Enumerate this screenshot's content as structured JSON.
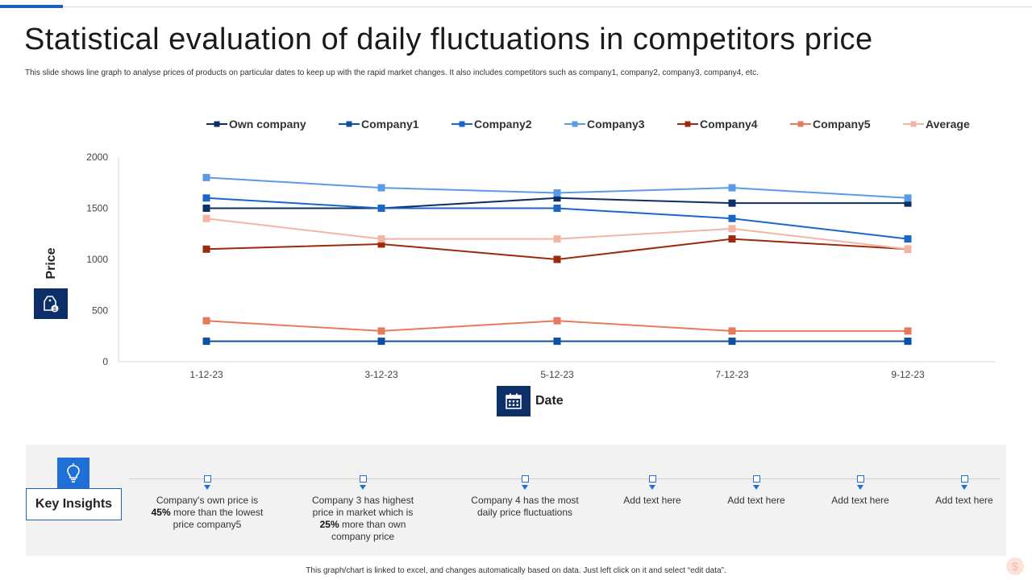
{
  "slide": {
    "title": "Statistical evaluation of daily fluctuations in competitors price",
    "subtitle": "This slide shows line graph to analyse prices of products on particular dates to keep up with the rapid market changes. It also includes competitors such as company1, company2, company3, company4, etc.",
    "footer": "This graph/chart is linked to excel, and changes automatically based on data. Just left click on it and select “edit data”."
  },
  "icons": {
    "price": "price-tag-icon",
    "date": "calendar-icon",
    "insights": "lightbulb-icon",
    "corner": "dollar-icon"
  },
  "chart_data": {
    "type": "line",
    "title": "",
    "xlabel": "Date",
    "ylabel": "Price",
    "categories": [
      "1-12-23",
      "3-12-23",
      "5-12-23",
      "7-12-23",
      "9-12-23"
    ],
    "ylim": [
      0,
      2000
    ],
    "yticks": [
      0,
      500,
      1000,
      1500,
      2000
    ],
    "grid": false,
    "legend_position": "top",
    "series": [
      {
        "name": "Own company",
        "color": "#0b2f66",
        "values": [
          1500,
          1500,
          1600,
          1550,
          1550
        ]
      },
      {
        "name": "Company1",
        "color": "#0d4fa0",
        "values": [
          200,
          200,
          200,
          200,
          200
        ]
      },
      {
        "name": "Company2",
        "color": "#1a66c8",
        "values": [
          1600,
          1500,
          1500,
          1400,
          1200
        ]
      },
      {
        "name": "Company3",
        "color": "#5b9be6",
        "values": [
          1800,
          1700,
          1650,
          1700,
          1600
        ]
      },
      {
        "name": "Company4",
        "color": "#9c2a0c",
        "values": [
          1100,
          1150,
          1000,
          1200,
          1100
        ]
      },
      {
        "name": "Company5",
        "color": "#e57a5c",
        "values": [
          400,
          300,
          400,
          300,
          300
        ]
      },
      {
        "name": "Average",
        "color": "#f2b5a3",
        "values": [
          1400,
          1200,
          1200,
          1300,
          1100
        ]
      }
    ]
  },
  "insights": {
    "label": "Key Insights",
    "items": [
      {
        "pre": "Company's own price is ",
        "bold": "45%",
        "post": " more than the lowest price company5"
      },
      {
        "pre": "Company 3 has highest price in market which is ",
        "bold": "25%",
        "post": " more than own company price"
      },
      {
        "pre": "Company 4 has the most daily price fluctuations",
        "bold": "",
        "post": ""
      },
      {
        "pre": "Add text here",
        "bold": "",
        "post": ""
      },
      {
        "pre": "Add text here",
        "bold": "",
        "post": ""
      },
      {
        "pre": "Add text here",
        "bold": "",
        "post": ""
      },
      {
        "pre": "Add text here",
        "bold": "",
        "post": ""
      }
    ]
  }
}
